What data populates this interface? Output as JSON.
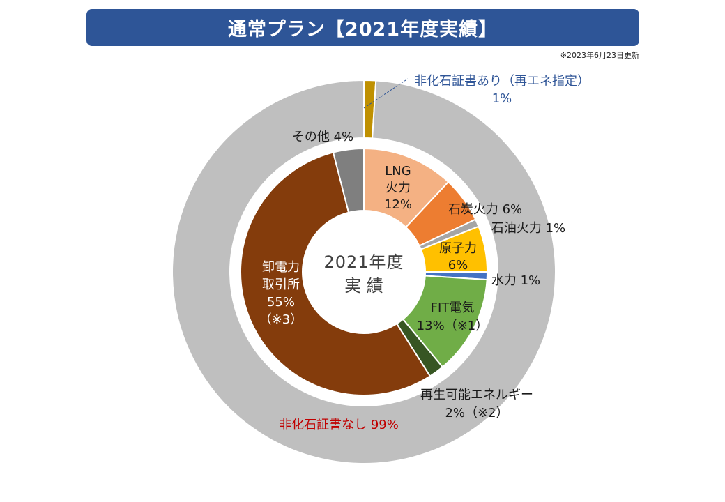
{
  "title": "通常プラン【2021年度実績】",
  "update_note": "※2023年6月23日更新",
  "chart_data": [
    {
      "type": "pie",
      "ring": "outer",
      "slices": [
        {
          "label": "非化石証書あり（再エネ指定）",
          "value": 1,
          "value_label": "1%",
          "color": "#bf9000",
          "label_color": "#2f5597"
        },
        {
          "label": "非化石証書なし",
          "value": 99,
          "value_label": "99%",
          "color": "#bfbfbf",
          "label_color": "#c00000"
        }
      ]
    },
    {
      "type": "pie",
      "ring": "inner",
      "center_label": [
        "2021年度",
        "実 績"
      ],
      "slices": [
        {
          "label": "LNG\n火力",
          "value": 12,
          "value_label": "12%",
          "color": "#f4b183"
        },
        {
          "label": "石炭火力",
          "value": 6,
          "value_label": "6%",
          "color": "#ed7d31"
        },
        {
          "label": "石油火力",
          "value": 1,
          "value_label": "1%",
          "color": "#a5a5a5"
        },
        {
          "label": "原子力",
          "value": 6,
          "value_label": "6%",
          "color": "#ffc000"
        },
        {
          "label": "水力",
          "value": 1,
          "value_label": "1%",
          "color": "#4472c4"
        },
        {
          "label": "FIT電気",
          "value": 13,
          "value_label": "13%（※1）",
          "color": "#70ad47"
        },
        {
          "label": "再生可能エネルギー",
          "value": 2,
          "value_label": "2%（※2）",
          "color": "#375623"
        },
        {
          "label": "卸電力\n取引所",
          "value": 55,
          "value_label": "55%\n（※3）",
          "color": "#843c0c"
        },
        {
          "label": "その他",
          "value": 4,
          "value_label": "4%",
          "color": "#7f7f7f"
        }
      ]
    }
  ]
}
